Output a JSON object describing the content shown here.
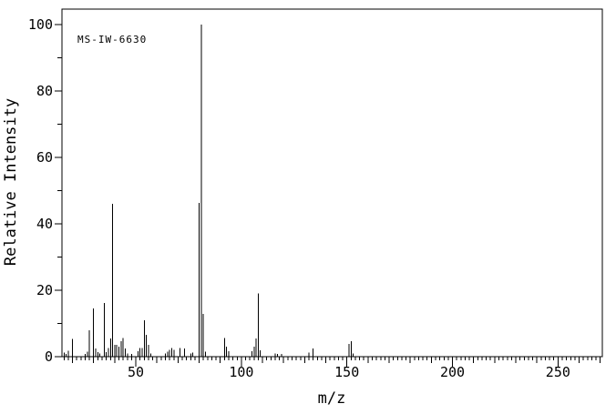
{
  "chart_data": {
    "type": "bar",
    "subtype": "mass-spectrum-stick-plot",
    "annotation": "MS-IW-6630",
    "xlabel": "m/z",
    "ylabel": "Relative Intensity",
    "xlim": [
      15,
      271
    ],
    "ylim": [
      0,
      100
    ],
    "grid": false,
    "x_major_tick_step": 50,
    "x_medium_tick_step": 10,
    "x_minor_tick_step": 2,
    "y_major_tick_step": 20,
    "y_minor_tick_step": 10,
    "x_tick_labels": [
      50,
      100,
      150,
      200,
      250
    ],
    "y_tick_labels": [
      0,
      20,
      40,
      60,
      80,
      100
    ],
    "frame_color": "#000000",
    "peak_color": "#000000",
    "background_color": "#ffffff",
    "peaks": [
      {
        "mz": 16,
        "intensity": 1.2
      },
      {
        "mz": 17,
        "intensity": 0.8
      },
      {
        "mz": 18,
        "intensity": 1.8
      },
      {
        "mz": 20,
        "intensity": 5.3
      },
      {
        "mz": 26,
        "intensity": 0.8
      },
      {
        "mz": 27,
        "intensity": 1.5
      },
      {
        "mz": 28,
        "intensity": 7.9
      },
      {
        "mz": 30,
        "intensity": 14.5
      },
      {
        "mz": 31,
        "intensity": 2.5
      },
      {
        "mz": 32,
        "intensity": 1.4
      },
      {
        "mz": 33,
        "intensity": 0.9
      },
      {
        "mz": 35,
        "intensity": 16.1
      },
      {
        "mz": 36,
        "intensity": 1.4
      },
      {
        "mz": 37,
        "intensity": 2.6
      },
      {
        "mz": 38,
        "intensity": 5.5
      },
      {
        "mz": 39,
        "intensity": 46.0
      },
      {
        "mz": 40,
        "intensity": 3.6
      },
      {
        "mz": 41,
        "intensity": 3.6
      },
      {
        "mz": 42,
        "intensity": 3.0
      },
      {
        "mz": 43,
        "intensity": 4.7
      },
      {
        "mz": 44,
        "intensity": 5.6
      },
      {
        "mz": 45,
        "intensity": 2.4
      },
      {
        "mz": 46,
        "intensity": 1.0
      },
      {
        "mz": 48,
        "intensity": 0.8
      },
      {
        "mz": 51,
        "intensity": 1.6
      },
      {
        "mz": 52,
        "intensity": 2.6
      },
      {
        "mz": 53,
        "intensity": 2.6
      },
      {
        "mz": 54,
        "intensity": 11.0
      },
      {
        "mz": 55,
        "intensity": 6.6
      },
      {
        "mz": 56,
        "intensity": 3.6
      },
      {
        "mz": 57,
        "intensity": 1.0
      },
      {
        "mz": 64,
        "intensity": 1.0
      },
      {
        "mz": 65,
        "intensity": 1.5
      },
      {
        "mz": 66,
        "intensity": 2.1
      },
      {
        "mz": 67,
        "intensity": 2.6
      },
      {
        "mz": 68,
        "intensity": 2.1
      },
      {
        "mz": 71,
        "intensity": 2.6
      },
      {
        "mz": 73,
        "intensity": 2.4
      },
      {
        "mz": 76,
        "intensity": 1.0
      },
      {
        "mz": 77,
        "intensity": 1.2
      },
      {
        "mz": 80,
        "intensity": 46.3
      },
      {
        "mz": 81,
        "intensity": 100.0
      },
      {
        "mz": 82,
        "intensity": 12.9
      },
      {
        "mz": 83,
        "intensity": 1.5
      },
      {
        "mz": 92,
        "intensity": 5.6
      },
      {
        "mz": 93,
        "intensity": 3.0
      },
      {
        "mz": 94,
        "intensity": 1.6
      },
      {
        "mz": 105,
        "intensity": 1.6
      },
      {
        "mz": 106,
        "intensity": 3.0
      },
      {
        "mz": 107,
        "intensity": 5.5
      },
      {
        "mz": 108,
        "intensity": 19.0
      },
      {
        "mz": 109,
        "intensity": 1.9
      },
      {
        "mz": 116,
        "intensity": 1.0
      },
      {
        "mz": 117,
        "intensity": 0.8
      },
      {
        "mz": 119,
        "intensity": 0.8
      },
      {
        "mz": 132,
        "intensity": 1.3
      },
      {
        "mz": 134,
        "intensity": 2.4
      },
      {
        "mz": 151,
        "intensity": 3.8
      },
      {
        "mz": 152,
        "intensity": 4.6
      },
      {
        "mz": 153,
        "intensity": 1.0
      }
    ]
  }
}
